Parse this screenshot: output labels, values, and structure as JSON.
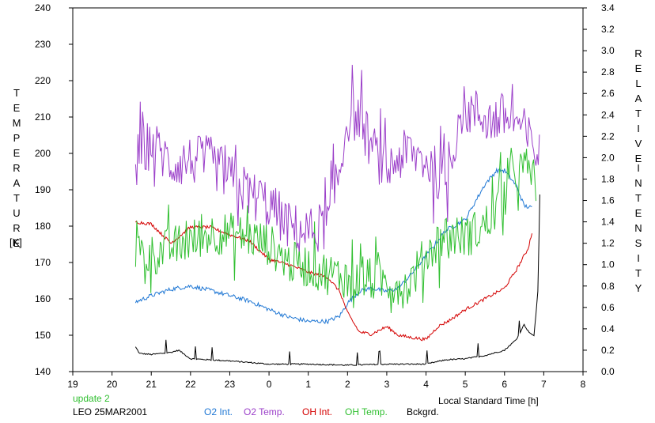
{
  "header": {
    "update_label": "update 2",
    "station_label": "LEO 25MAR2001"
  },
  "axes": {
    "left_title": "TEMPERATURE",
    "left_unit": "[K]",
    "right_title_line1": "RELATIVE",
    "right_title_line2": "INTENSITY",
    "xlabel": "Local Standard Time [h]"
  },
  "colors": {
    "o2_int": "#1f77d4",
    "o2_temp": "#9b3fc9",
    "oh_int": "#d40000",
    "oh_temp": "#2fbf2f",
    "bckgrd": "#000000",
    "update": "#2fbf2f"
  },
  "legend": [
    {
      "key": "o2_int",
      "label": "O2 Int."
    },
    {
      "key": "o2_temp",
      "label": "O2 Temp."
    },
    {
      "key": "oh_int",
      "label": "OH Int."
    },
    {
      "key": "oh_temp",
      "label": "OH Temp."
    },
    {
      "key": "bckgrd",
      "label": "Bckgrd."
    }
  ],
  "chart_data": {
    "type": "line",
    "x_axis": {
      "ticks": [
        "19",
        "20",
        "21",
        "22",
        "23",
        "0",
        "1",
        "2",
        "3",
        "4",
        "5",
        "6",
        "7",
        "8"
      ],
      "range": [
        19,
        32
      ]
    },
    "y_left": {
      "ticks": [
        140,
        150,
        160,
        170,
        180,
        190,
        200,
        210,
        220,
        230,
        240
      ],
      "range": [
        140,
        240
      ],
      "label": "TEMPERATURE [K]"
    },
    "y_right": {
      "ticks": [
        "0.0",
        "0.2",
        "0.4",
        "0.6",
        "0.8",
        "1.0",
        "1.2",
        "1.4",
        "1.6",
        "1.8",
        "2.0",
        "2.2",
        "2.4",
        "2.6",
        "2.8",
        "3.0",
        "3.2",
        "3.4"
      ],
      "range": [
        0,
        3.4
      ],
      "label": "RELATIVE INTENSITY"
    },
    "series": [
      {
        "key": "o2_temp",
        "name": "O2 Temp.",
        "axis": "left",
        "noise": 7,
        "x": [
          20.6,
          21.0,
          21.5,
          22.0,
          22.5,
          23.0,
          23.5,
          24.0,
          24.5,
          25.0,
          25.5,
          25.8,
          26.0,
          26.3,
          26.6,
          27.0,
          27.3,
          27.6,
          28.0,
          28.5,
          28.9,
          29.3,
          29.7,
          30.0,
          30.3,
          30.6,
          30.9
        ],
        "y": [
          198,
          203,
          197,
          198,
          198,
          193,
          189,
          186,
          180,
          178,
          181,
          195,
          210,
          210,
          202,
          195,
          199,
          200,
          198,
          192,
          212,
          211,
          209,
          210,
          209,
          204,
          199
        ]
      },
      {
        "key": "oh_temp",
        "name": "OH Temp.",
        "axis": "left",
        "noise": 6,
        "x": [
          20.6,
          21.0,
          21.5,
          22.0,
          22.5,
          23.0,
          23.5,
          24.0,
          24.5,
          25.0,
          25.5,
          26.0,
          26.5,
          27.0,
          27.5,
          28.0,
          28.5,
          29.0,
          29.5,
          29.8,
          30.0,
          30.3,
          30.6,
          30.8
        ],
        "y": [
          173,
          172,
          174,
          176,
          178,
          178,
          177,
          175,
          170,
          169,
          167,
          166,
          165,
          165,
          163,
          172,
          178,
          177,
          180,
          185,
          190,
          195,
          196,
          192
        ]
      },
      {
        "key": "o2_int",
        "name": "O2 Int.",
        "axis": "right",
        "noise": 0.02,
        "x": [
          20.6,
          21.0,
          21.5,
          22.0,
          22.5,
          23.0,
          23.5,
          24.0,
          24.5,
          25.0,
          25.5,
          25.8,
          26.0,
          26.3,
          26.6,
          27.0,
          27.3,
          27.6,
          28.0,
          28.5,
          29.0,
          29.5,
          29.8,
          30.0,
          30.3,
          30.5,
          30.7
        ],
        "y": [
          0.65,
          0.71,
          0.77,
          0.8,
          0.76,
          0.71,
          0.66,
          0.58,
          0.51,
          0.47,
          0.47,
          0.52,
          0.64,
          0.75,
          0.78,
          0.75,
          0.78,
          0.9,
          1.08,
          1.32,
          1.42,
          1.75,
          1.88,
          1.88,
          1.74,
          1.55,
          1.53
        ]
      },
      {
        "key": "oh_int",
        "name": "OH Int.",
        "axis": "right",
        "noise": 0.015,
        "x": [
          20.6,
          21.0,
          21.5,
          22.0,
          22.5,
          23.0,
          23.5,
          24.0,
          24.5,
          25.0,
          25.5,
          25.8,
          26.0,
          26.3,
          26.6,
          27.0,
          27.3,
          27.6,
          28.0,
          28.3,
          28.6,
          29.0,
          29.5,
          30.0,
          30.3,
          30.6,
          30.7
        ],
        "y": [
          1.4,
          1.38,
          1.2,
          1.35,
          1.35,
          1.28,
          1.22,
          1.05,
          1.0,
          0.93,
          0.88,
          0.75,
          0.55,
          0.37,
          0.35,
          0.42,
          0.34,
          0.32,
          0.3,
          0.42,
          0.48,
          0.58,
          0.68,
          0.78,
          0.95,
          1.15,
          1.3
        ]
      },
      {
        "key": "bckgrd",
        "name": "Bckgrd.",
        "axis": "right",
        "noise": 0.006,
        "x": [
          20.6,
          20.7,
          21.0,
          21.5,
          21.7,
          22.0,
          23.0,
          24.0,
          25.0,
          26.0,
          27.0,
          28.0,
          28.5,
          29.0,
          29.5,
          30.0,
          30.3,
          30.5,
          30.6,
          30.75,
          30.85,
          30.9
        ],
        "y": [
          0.23,
          0.17,
          0.16,
          0.18,
          0.2,
          0.12,
          0.1,
          0.07,
          0.07,
          0.06,
          0.07,
          0.07,
          0.11,
          0.12,
          0.15,
          0.2,
          0.3,
          0.44,
          0.38,
          0.33,
          0.75,
          1.65
        ]
      }
    ]
  }
}
